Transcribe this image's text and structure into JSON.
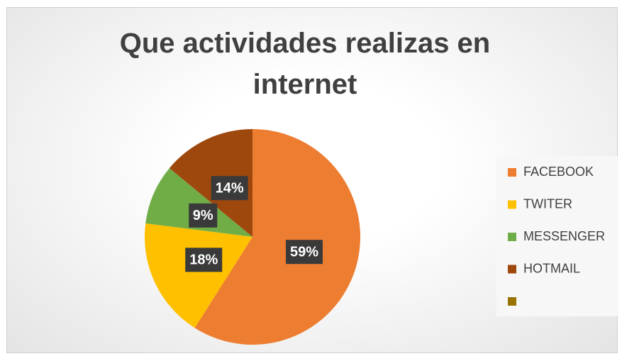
{
  "chart_data": {
    "type": "pie",
    "title": "Que actividades realizas en internet",
    "categories": [
      "FACEBOOK",
      "TWITER",
      "MESSENGER",
      "HOTMAIL",
      null
    ],
    "values": [
      59,
      18,
      9,
      14,
      0
    ],
    "value_labels": [
      "59%",
      "18%",
      "9%",
      "14%",
      null
    ],
    "colors": [
      "#ED7D31",
      "#FFC000",
      "#70AD47",
      "#9E480E",
      "#997300"
    ],
    "legend": "right"
  }
}
